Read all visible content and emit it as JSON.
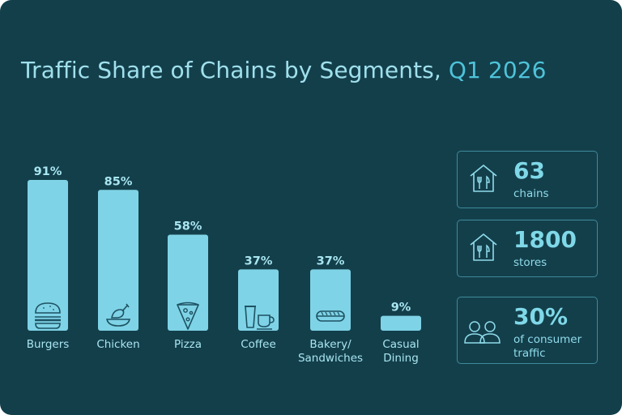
{
  "title": {
    "main": "Traffic Share of Chains by Segments,",
    "highlight": "Q1 2026"
  },
  "colors": {
    "background": "#133f4b",
    "title": "#9fe0ec",
    "highlight": "#4ec3d9",
    "bar": "#7fd3e6",
    "text": "#a8e6f0",
    "card_border": "#3f8a99"
  },
  "chart_data": {
    "type": "bar",
    "categories": [
      "Burgers",
      "Chicken",
      "Pizza",
      "Coffee",
      "Bakery/\nSandwiches",
      "Casual\nDining"
    ],
    "values": [
      91,
      85,
      58,
      37,
      37,
      9
    ],
    "value_labels": [
      "91%",
      "85%",
      "58%",
      "37%",
      "37%",
      "9%"
    ],
    "icons": [
      "burger-icon",
      "chicken-icon",
      "pizza-icon",
      "coffee-icon",
      "sandwich-icon",
      ""
    ],
    "title": "Traffic Share of Chains by Segments, Q1 2026",
    "xlabel": "",
    "ylabel": "",
    "ylim": [
      0,
      100
    ],
    "grid": false
  },
  "stats": [
    {
      "value": "63",
      "label": "chains",
      "icon": "restaurant-house-icon"
    },
    {
      "value": "1800",
      "label": "stores",
      "icon": "restaurant-house-icon"
    },
    {
      "value": "30%",
      "label": "of consumer\ntraffic",
      "icon": "people-icon"
    }
  ]
}
